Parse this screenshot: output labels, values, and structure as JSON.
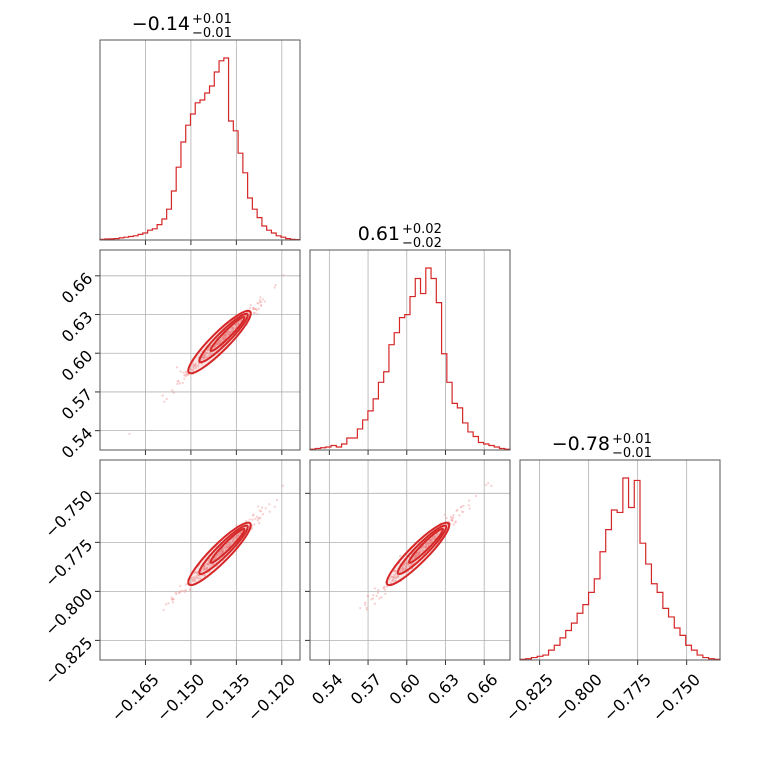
{
  "chart_data": {
    "type": "corner",
    "color": "#d62728",
    "grid": true,
    "params": [
      {
        "median": -0.14,
        "range": [
          -0.18,
          -0.114
        ],
        "ticks": [
          -0.165,
          -0.15,
          -0.135,
          -0.12
        ],
        "tick_labels": [
          "−0.165",
          "−0.150",
          "−0.135",
          "−0.120"
        ],
        "title": {
          "value": "−0.14",
          "plus": "+0.01",
          "minus": "−0.01"
        },
        "hist": [
          0.5,
          0.7,
          0.8,
          1,
          1.5,
          2,
          2.5,
          3,
          4,
          5,
          7,
          8,
          11,
          15,
          22,
          35,
          52,
          70,
          82,
          90,
          98,
          100,
          105,
          110,
          120,
          128,
          130,
          85,
          78,
          62,
          48,
          30,
          22,
          16,
          10,
          7,
          5,
          3,
          2,
          1,
          0.5,
          0.3
        ]
      },
      {
        "median": 0.61,
        "range": [
          0.525,
          0.68
        ],
        "ticks": [
          0.54,
          0.57,
          0.6,
          0.63,
          0.66
        ],
        "tick_labels": [
          "0.54",
          "0.57",
          "0.60",
          "0.63",
          "0.66"
        ],
        "title": {
          "value": "0.61",
          "plus": "+0.02",
          "minus": "−0.02"
        },
        "hist": [
          0.5,
          1,
          1.5,
          2,
          3,
          2,
          4,
          8,
          8,
          14,
          20,
          26,
          34,
          45,
          52,
          70,
          78,
          88,
          90,
          102,
          114,
          104,
          121,
          114,
          98,
          64,
          45,
          31,
          28,
          18,
          12,
          9,
          5,
          4,
          3,
          2,
          1,
          0.5
        ]
      },
      {
        "median": -0.78,
        "range": [
          -0.835,
          -0.733
        ],
        "ticks": [
          -0.825,
          -0.8,
          -0.775,
          -0.75
        ],
        "tick_labels": [
          "−0.825",
          "−0.800",
          "−0.775",
          "−0.750"
        ],
        "title": {
          "value": "−0.78",
          "plus": "+0.01",
          "minus": "−0.01"
        },
        "hist": [
          0.5,
          1,
          2,
          3,
          4,
          8,
          12,
          18,
          24,
          30,
          38,
          45,
          55,
          66,
          88,
          106,
          122,
          120,
          148,
          124,
          146,
          95,
          78,
          62,
          55,
          42,
          35,
          26,
          20,
          12,
          8,
          4,
          2,
          1,
          0.5
        ]
      }
    ]
  }
}
